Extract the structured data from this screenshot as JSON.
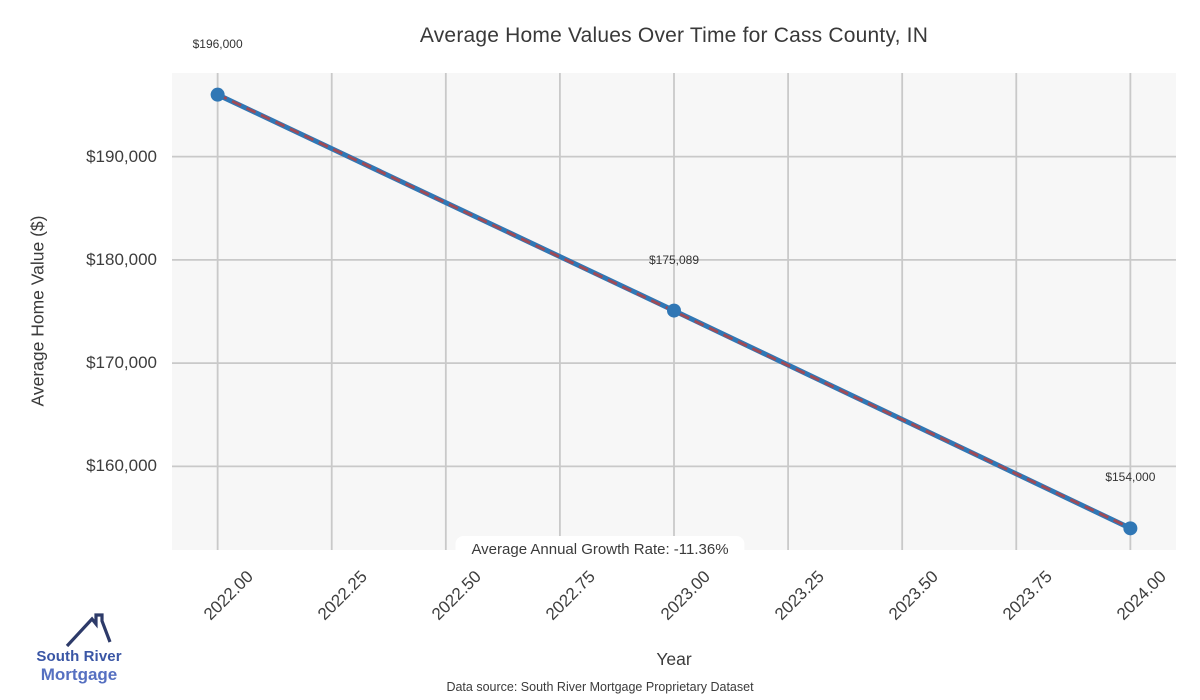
{
  "chart_data": {
    "type": "line",
    "title": "Average Home Values Over Time for Cass County, IN",
    "xlabel": "Year",
    "ylabel": "Average Home Value ($)",
    "x": [
      2022.0,
      2023.0,
      2024.0
    ],
    "y": [
      196000,
      175089,
      154000
    ],
    "point_labels": [
      "$196,000",
      "$175,089",
      "$154,000"
    ],
    "series": [
      {
        "name": "average-home-value",
        "style": "solid",
        "color": "#3077b5"
      },
      {
        "name": "linear-trend",
        "style": "dashed",
        "color": "#a04a55",
        "x": [
          2022.0,
          2024.0
        ],
        "values": [
          196030,
          154030
        ]
      }
    ],
    "xlim": [
      2021.9,
      2024.1
    ],
    "ylim": [
      151900,
      198100
    ],
    "xticks": {
      "values": [
        2022.0,
        2022.25,
        2022.5,
        2022.75,
        2023.0,
        2023.25,
        2023.5,
        2023.75,
        2024.0
      ],
      "labels": [
        "2022.00",
        "2022.25",
        "2022.50",
        "2022.75",
        "2023.00",
        "2023.25",
        "2023.50",
        "2023.75",
        "2024.00"
      ]
    },
    "yticks": {
      "values": [
        160000,
        170000,
        180000,
        190000
      ],
      "labels": [
        "$160,000",
        "$170,000",
        "$180,000",
        "$190,000"
      ]
    },
    "grid": true,
    "legend": "none",
    "annotation": "Average Annual Growth Rate: -11.36%",
    "caption": "Data source: South River Mortgage Proprietary Dataset",
    "colors": {
      "plot_background": "#f7f7f7",
      "grid": "#c9c9c9",
      "text": "#3b3b3b",
      "line": "#3077b5",
      "trend": "#a04a55",
      "marker": "#3077b5"
    }
  },
  "branding": {
    "logo_line1": "South River",
    "logo_line2": "Mortgage",
    "logo_color1": "#3a56a5",
    "logo_color2": "#5670c1",
    "roof_color": "#2d3a69"
  }
}
